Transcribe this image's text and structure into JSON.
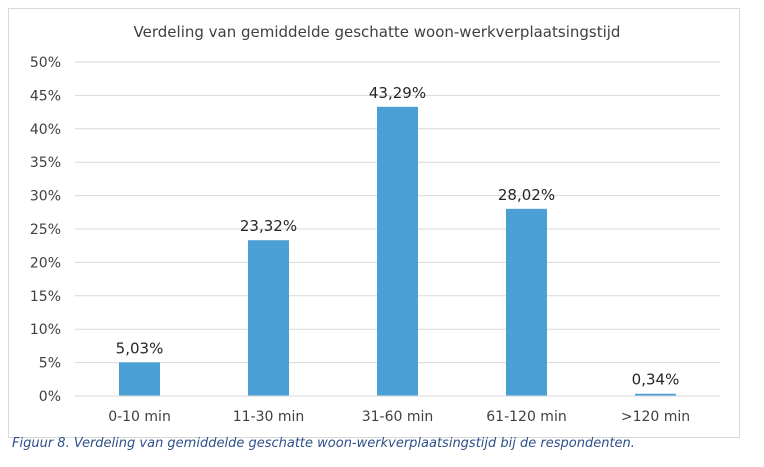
{
  "chart_data": {
    "type": "bar",
    "title": "Verdeling van gemiddelde geschatte woon-werkverplaatsingstijd",
    "categories": [
      "0-10 min",
      "11-30 min",
      "31-60 min",
      "61-120 min",
      ">120 min"
    ],
    "values": [
      5.03,
      23.32,
      43.29,
      28.02,
      0.34
    ],
    "data_labels": [
      "5,03%",
      "23,32%",
      "43,29%",
      "28,02%",
      "0,34%"
    ],
    "ylim": [
      0,
      50
    ],
    "yticks": [
      0,
      5,
      10,
      15,
      20,
      25,
      30,
      35,
      40,
      45,
      50
    ],
    "ytick_labels": [
      "0%",
      "5%",
      "10%",
      "15%",
      "20%",
      "25%",
      "30%",
      "35%",
      "40%",
      "45%",
      "50%"
    ],
    "xlabel": "",
    "ylabel": "",
    "grid": true,
    "bar_color": "#4a9fd5"
  },
  "caption": "Figuur 8. Verdeling van gemiddelde geschatte woon-werkverplaatsingstijd bij de respondenten."
}
